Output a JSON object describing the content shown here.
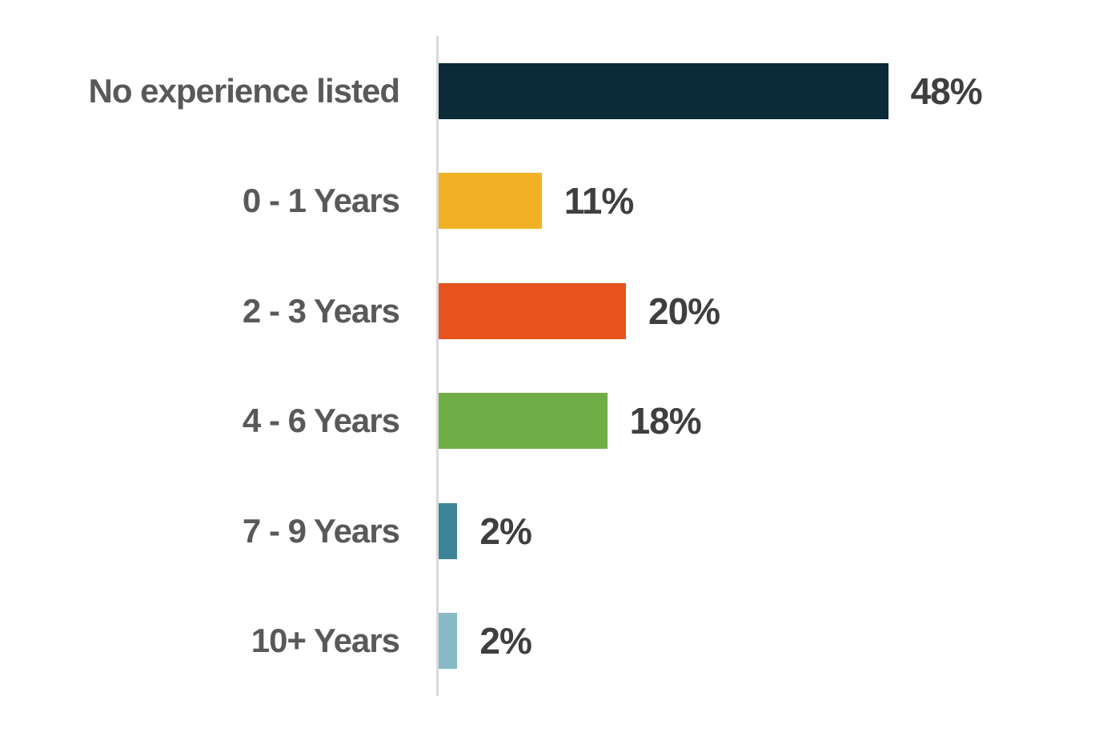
{
  "chart_data": {
    "type": "bar",
    "orientation": "horizontal",
    "title": "",
    "xlabel": "",
    "ylabel": "",
    "categories": [
      "No experience listed",
      "0 - 1 Years",
      "2 - 3 Years",
      "4 - 6 Years",
      "7 - 9 Years",
      "10+ Years"
    ],
    "values": [
      48,
      11,
      20,
      18,
      2,
      2
    ],
    "value_labels": [
      "48%",
      "11%",
      "20%",
      "18%",
      "2%",
      "2%"
    ],
    "bar_colors": [
      "#0B2B38",
      "#F2B124",
      "#E6531D",
      "#70AD47",
      "#3D8596",
      "#85BAC6"
    ],
    "xlim": [
      0,
      48
    ],
    "grid": false,
    "legend": false,
    "category_label_color": "#595959",
    "value_label_color": "#3F3F3F",
    "axis_line_color": "#D9D9D9",
    "background_color": "#FFFFFF"
  }
}
